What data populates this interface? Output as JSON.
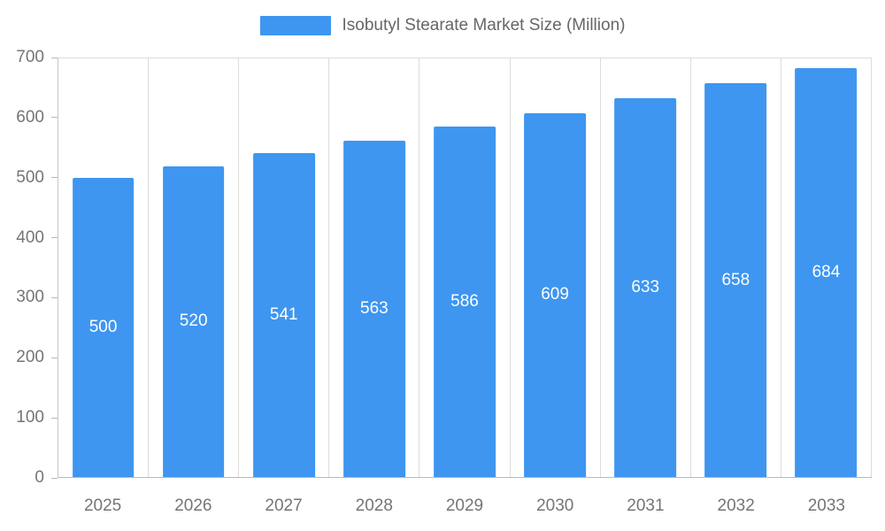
{
  "chart": {
    "colors": {
      "bar": "#3E96F0",
      "axis_text": "#757575",
      "legend_text": "#666666",
      "grid_line": "#dcdcdc",
      "axis_line": "#b9b9b9",
      "value_label": "#ffffff",
      "background": "#ffffff"
    }
  },
  "chart_data": {
    "type": "bar",
    "title": "Isobutyl Stearate Market Size (Million)",
    "categories": [
      "2025",
      "2026",
      "2027",
      "2028",
      "2029",
      "2030",
      "2031",
      "2032",
      "2033"
    ],
    "values": [
      500,
      520,
      541,
      563,
      586,
      609,
      633,
      658,
      684
    ],
    "xlabel": "",
    "ylabel": "",
    "ylim": [
      0,
      700
    ],
    "yticks": [
      0,
      100,
      200,
      300,
      400,
      500,
      600,
      700
    ],
    "grid": "vertical-only",
    "legend_position": "top-center",
    "value_labels": "inside-bar-centered-white"
  }
}
